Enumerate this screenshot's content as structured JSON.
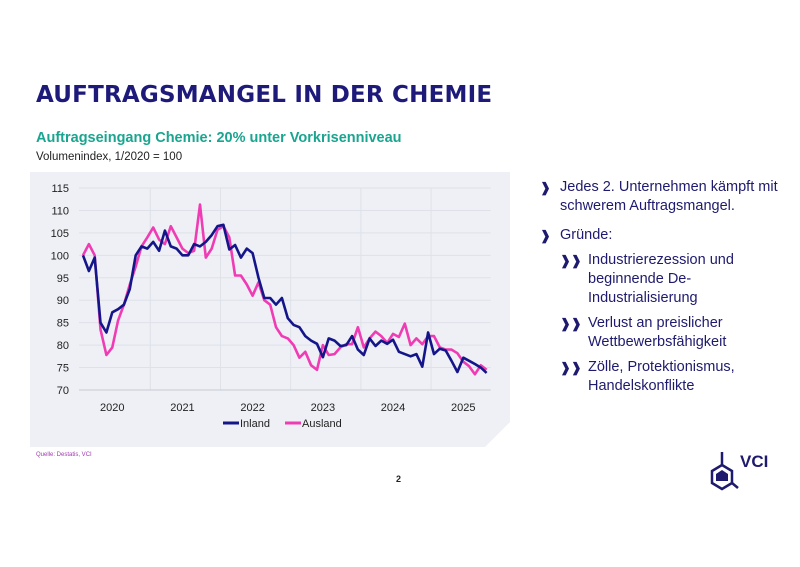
{
  "title": "AUFTRAGSMANGEL IN DER CHEMIE",
  "subtitle": "Auftragseingang Chemie: 20% unter Vorkrisenniveau",
  "unit_note": "Volumenindex, 1/2020 = 100",
  "source": "Quelle: Destatis, VCI",
  "page_number": "2",
  "logo_text": "VCI",
  "bullets": {
    "item1": "Jedes 2. Unternehmen kämpft mit schwerem Auftragsmangel.",
    "item2": "Gründe:",
    "sub": [
      "Industrierezession und beginnende De-Industrialisierung",
      "Verlust an preislicher Wettbewerbsfähigkeit",
      "Zölle, Protektionismus, Handelskonflikte"
    ],
    "arrow_single": "❱",
    "arrow_double": "❱❱"
  },
  "colors": {
    "inland": "#15158a",
    "ausland": "#f03cb4",
    "background": "#eef0f5",
    "title": "#1e1a7a",
    "subtitle": "#19a58f"
  },
  "chart_data": {
    "type": "line",
    "title": "Auftragseingang Chemie: 20% unter Vorkrisenniveau",
    "ylabel": "Volumenindex, 1/2020 = 100",
    "x_start": "2020-01",
    "x_frequency": "monthly",
    "x_tick_labels": [
      "2020",
      "2021",
      "2022",
      "2023",
      "2024",
      "2025"
    ],
    "y_ticks": [
      70,
      75,
      80,
      85,
      90,
      95,
      100,
      105,
      110,
      115
    ],
    "ylim": [
      70,
      115
    ],
    "grid": true,
    "legend_position": "bottom",
    "series": [
      {
        "name": "Inland",
        "values": [
          100,
          96.5,
          99.5,
          85,
          82.8,
          87.3,
          88,
          89,
          92.5,
          100,
          102,
          101.5,
          103,
          101,
          105.5,
          102,
          101.5,
          100,
          100,
          102.5,
          102,
          103,
          104.5,
          106.5,
          106.8,
          101.3,
          102.3,
          99.5,
          101.5,
          100.5,
          95,
          90.5,
          90.5,
          89,
          90.5,
          86,
          84.5,
          84,
          82,
          81,
          80.3,
          77.3,
          81.5,
          81,
          79.8,
          80,
          82,
          79,
          77.8,
          81.5,
          79.8,
          81,
          80.3,
          81.2,
          78.5,
          78,
          77.5,
          78,
          75.2,
          82.8,
          78,
          79.2,
          78.8,
          76.5,
          74,
          77.2,
          76.5,
          75.8,
          75,
          73.8
        ]
      },
      {
        "name": "Ausland",
        "values": [
          100,
          102.5,
          100,
          83.5,
          77.8,
          79.5,
          85.5,
          89,
          93.5,
          97.5,
          102,
          104,
          106.2,
          103.5,
          102.5,
          106.5,
          104,
          101.5,
          100.5,
          101,
          111.3,
          99.5,
          101.5,
          105.7,
          106.5,
          104,
          95.5,
          95.5,
          93.5,
          91,
          94,
          90,
          89,
          84,
          82,
          81.5,
          80,
          77.2,
          78.5,
          75.5,
          74.5,
          80,
          77.8,
          78,
          79.5,
          80.2,
          80.2,
          84,
          79.5,
          81.5,
          83,
          82,
          80.5,
          82.5,
          81.8,
          84.8,
          80,
          81.5,
          80.2,
          82,
          82,
          79.5,
          79,
          79,
          78.2,
          76.3,
          75.3,
          73.5,
          75.5,
          74.5
        ]
      }
    ]
  }
}
